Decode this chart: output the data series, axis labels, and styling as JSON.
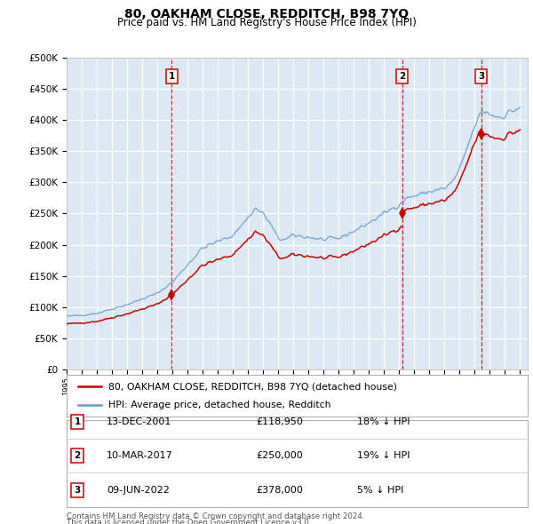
{
  "title": "80, OAKHAM CLOSE, REDDITCH, B98 7YQ",
  "subtitle": "Price paid vs. HM Land Registry's House Price Index (HPI)",
  "legend_line1": "80, OAKHAM CLOSE, REDDITCH, B98 7YQ (detached house)",
  "legend_line2": "HPI: Average price, detached house, Redditch",
  "footer1": "Contains HM Land Registry data © Crown copyright and database right 2024.",
  "footer2": "This data is licensed under the Open Government Licence v3.0.",
  "transactions": [
    {
      "num": 1,
      "date": "13-DEC-2001",
      "price": "£118,950",
      "hpi": "18% ↓ HPI",
      "year": 2001.958
    },
    {
      "num": 2,
      "date": "10-MAR-2017",
      "price": "£250,000",
      "hpi": "19% ↓ HPI",
      "year": 2017.19
    },
    {
      "num": 3,
      "date": "09-JUN-2022",
      "price": "£378,000",
      "hpi": "5% ↓ HPI",
      "year": 2022.44
    }
  ],
  "sale_years": [
    2001.958,
    2017.19,
    2022.44
  ],
  "sale_prices": [
    118950,
    250000,
    378000
  ],
  "hpi_color": "#6699cc",
  "sale_color": "#cc0000",
  "background_color": "#dce9f5",
  "grid_color": "#ffffff",
  "ylim": [
    0,
    500000
  ],
  "yticks": [
    0,
    50000,
    100000,
    150000,
    200000,
    250000,
    300000,
    350000,
    400000,
    450000,
    500000
  ],
  "xlim": [
    1995,
    2025.5
  ]
}
